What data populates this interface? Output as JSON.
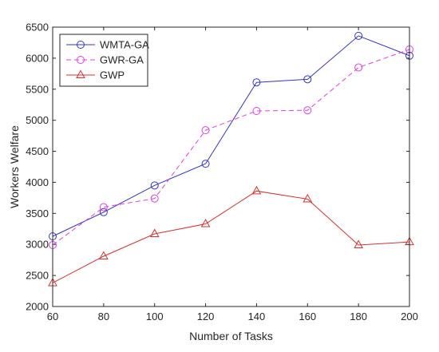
{
  "chart_data": {
    "type": "line",
    "title": "",
    "xlabel": "Number of Tasks",
    "ylabel": "Workers Welfare",
    "x": [
      60,
      80,
      100,
      120,
      140,
      160,
      180,
      200
    ],
    "xlim": [
      60,
      200
    ],
    "ylim": [
      2000,
      6500
    ],
    "xticks": [
      "60",
      "80",
      "100",
      "120",
      "140",
      "160",
      "180",
      "200"
    ],
    "yticks": [
      "2000",
      "2500",
      "3000",
      "3500",
      "4000",
      "4500",
      "5000",
      "5500",
      "6000",
      "6500"
    ],
    "grid": false,
    "legend_position": "top-left",
    "series": [
      {
        "name": "WMTA-GA",
        "values": [
          3130,
          3520,
          3950,
          4300,
          5610,
          5660,
          6360,
          6040
        ],
        "color": "#3333cc",
        "line_style": "solid",
        "marker": "circle"
      },
      {
        "name": "GWR-GA",
        "values": [
          2990,
          3600,
          3740,
          4840,
          5150,
          5160,
          5850,
          6140
        ],
        "color": "#e040e0",
        "line_style": "dashed",
        "marker": "circle"
      },
      {
        "name": "GWP",
        "values": [
          2380,
          2810,
          3170,
          3330,
          3860,
          3730,
          2990,
          3040
        ],
        "color": "#d93030",
        "line_style": "solid",
        "marker": "triangle"
      }
    ]
  }
}
